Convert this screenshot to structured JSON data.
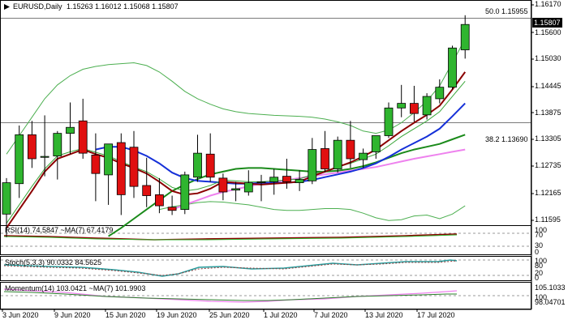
{
  "header": {
    "symbol": "EURUSD,Daily",
    "ohlc": "1.15263 1.16012 1.15068 1.15807"
  },
  "current_price": "1.15807",
  "fib_levels": [
    {
      "label": "50.0 1.15955",
      "price": 1.15955
    },
    {
      "label": "38.2 1.13690",
      "price": 1.1369
    }
  ],
  "price_axis": [
    "1.16170",
    "1.15600",
    "1.15030",
    "1.14445",
    "1.13875",
    "1.13305",
    "1.12735",
    "1.12165",
    "1.11595"
  ],
  "date_axis": [
    "3 Jun 2020",
    "9 Jun 2020",
    "15 Jun 2020",
    "19 Jun 2020",
    "25 Jun 2020",
    "1 Jul 2020",
    "7 Jul 2020",
    "13 Jul 2020",
    "17 Jul 2020"
  ],
  "indicators": {
    "rsi": {
      "label": "RSI(14) 74.5847  ~MA(7) 67.4179",
      "axis": [
        "100",
        "70",
        "30",
        "0"
      ]
    },
    "stoch": {
      "label": "Stoch(5,3,3) 90.0332 84.5625",
      "axis": [
        "100",
        "80",
        "20",
        "0"
      ]
    },
    "momentum": {
      "label": "Momentum(14) 103.0421  ~MA(7) 101.9903",
      "axis": [
        "105.1033",
        "100",
        "98.04701"
      ]
    }
  },
  "colors": {
    "bull": "#2fb52f",
    "bear": "#e01010",
    "ma_dark_red": "#8b0000",
    "ma_green": "#1a8a1a",
    "ma_blue": "#1530d8",
    "ma_pink": "#ee82ee",
    "bands": "#4caf50"
  },
  "chart_data": {
    "type": "candlestick",
    "candles": [
      {
        "date": "2 Jun 2020",
        "open": 1.117,
        "high": 1.1248,
        "low": 1.112,
        "close": 1.1238
      },
      {
        "date": "3 Jun 2020",
        "open": 1.1236,
        "high": 1.1362,
        "low": 1.1205,
        "close": 1.1342
      },
      {
        "date": "4 Jun 2020",
        "open": 1.1342,
        "high": 1.1372,
        "low": 1.127,
        "close": 1.129
      },
      {
        "date": "5 Jun 2020",
        "open": 1.1293,
        "high": 1.1384,
        "low": 1.1252,
        "close": 1.1295
      },
      {
        "date": "8 Jun 2020",
        "open": 1.1296,
        "high": 1.135,
        "low": 1.1245,
        "close": 1.1345
      },
      {
        "date": "9 Jun 2020",
        "open": 1.1345,
        "high": 1.1412,
        "low": 1.13,
        "close": 1.1358
      },
      {
        "date": "10 Jun 2020",
        "open": 1.1372,
        "high": 1.142,
        "low": 1.129,
        "close": 1.1302
      },
      {
        "date": "11 Jun 2020",
        "open": 1.1298,
        "high": 1.1345,
        "low": 1.1198,
        "close": 1.1258
      },
      {
        "date": "12 Jun 2020",
        "open": 1.1255,
        "high": 1.132,
        "low": 1.119,
        "close": 1.1322
      },
      {
        "date": "15 Jun 2020",
        "open": 1.1325,
        "high": 1.1345,
        "low": 1.1168,
        "close": 1.1212
      },
      {
        "date": "16 Jun 2020",
        "open": 1.1315,
        "high": 1.135,
        "low": 1.1205,
        "close": 1.123
      },
      {
        "date": "17 Jun 2020",
        "open": 1.1232,
        "high": 1.1292,
        "low": 1.1185,
        "close": 1.121
      },
      {
        "date": "18 Jun 2020",
        "open": 1.1212,
        "high": 1.1248,
        "low": 1.1172,
        "close": 1.1188
      },
      {
        "date": "19 Jun 2020",
        "open": 1.1185,
        "high": 1.121,
        "low": 1.1168,
        "close": 1.1178
      },
      {
        "date": "22 Jun 2020",
        "open": 1.118,
        "high": 1.1262,
        "low": 1.117,
        "close": 1.1255
      },
      {
        "date": "23 Jun 2020",
        "open": 1.125,
        "high": 1.1342,
        "low": 1.124,
        "close": 1.1302
      },
      {
        "date": "24 Jun 2020",
        "open": 1.13,
        "high": 1.1345,
        "low": 1.124,
        "close": 1.125
      },
      {
        "date": "25 Jun 2020",
        "open": 1.1248,
        "high": 1.1258,
        "low": 1.12,
        "close": 1.1218
      },
      {
        "date": "26 Jun 2020",
        "open": 1.1222,
        "high": 1.124,
        "low": 1.1198,
        "close": 1.1225
      },
      {
        "date": "29 Jun 2020",
        "open": 1.1218,
        "high": 1.1265,
        "low": 1.121,
        "close": 1.1238
      },
      {
        "date": "30 Jun 2020",
        "open": 1.1238,
        "high": 1.1255,
        "low": 1.1198,
        "close": 1.124
      },
      {
        "date": "1 Jul 2020",
        "open": 1.124,
        "high": 1.1268,
        "low": 1.1212,
        "close": 1.125
      },
      {
        "date": "2 Jul 2020",
        "open": 1.1252,
        "high": 1.129,
        "low": 1.1225,
        "close": 1.124
      },
      {
        "date": "3 Jul 2020",
        "open": 1.1238,
        "high": 1.1265,
        "low": 1.122,
        "close": 1.1245
      },
      {
        "date": "6 Jul 2020",
        "open": 1.1242,
        "high": 1.1335,
        "low": 1.1235,
        "close": 1.131
      },
      {
        "date": "7 Jul 2020",
        "open": 1.1312,
        "high": 1.135,
        "low": 1.126,
        "close": 1.1268
      },
      {
        "date": "8 Jul 2020",
        "open": 1.1268,
        "high": 1.1338,
        "low": 1.126,
        "close": 1.133
      },
      {
        "date": "9 Jul 2020",
        "open": 1.133,
        "high": 1.1372,
        "low": 1.127,
        "close": 1.129
      },
      {
        "date": "10 Jul 2020",
        "open": 1.1288,
        "high": 1.1312,
        "low": 1.127,
        "close": 1.1302
      },
      {
        "date": "13 Jul 2020",
        "open": 1.1305,
        "high": 1.134,
        "low": 1.129,
        "close": 1.134
      },
      {
        "date": "14 Jul 2020",
        "open": 1.134,
        "high": 1.1412,
        "low": 1.1335,
        "close": 1.14
      },
      {
        "date": "15 Jul 2020",
        "open": 1.14,
        "high": 1.145,
        "low": 1.138,
        "close": 1.141
      },
      {
        "date": "16 Jul 2020",
        "open": 1.141,
        "high": 1.1448,
        "low": 1.137,
        "close": 1.1388
      },
      {
        "date": "17 Jul 2020",
        "open": 1.1385,
        "high": 1.1432,
        "low": 1.1375,
        "close": 1.1425
      },
      {
        "date": "20 Jul 2020",
        "open": 1.142,
        "high": 1.1462,
        "low": 1.141,
        "close": 1.1445
      },
      {
        "date": "21 Jul 2020",
        "open": 1.1445,
        "high": 1.1535,
        "low": 1.144,
        "close": 1.153
      },
      {
        "date": "22 Jul 2020",
        "open": 1.1526,
        "high": 1.1601,
        "low": 1.1507,
        "close": 1.1581
      }
    ],
    "overlays": {
      "ma_dark_red": [
        1.114,
        1.118,
        1.122,
        1.1262,
        1.129,
        1.13,
        1.131,
        1.13,
        1.1292,
        1.128,
        1.127,
        1.1258,
        1.124,
        1.122,
        1.1212,
        1.1215,
        1.1225,
        1.124,
        1.1238,
        1.1236,
        1.1234,
        1.1236,
        1.1238,
        1.124,
        1.1252,
        1.1262,
        1.1272,
        1.1282,
        1.1295,
        1.131,
        1.133,
        1.135,
        1.1368,
        1.1385,
        1.1405,
        1.144,
        1.1478
      ],
      "ma_green_thin": [
        1.115,
        1.119,
        1.123,
        1.1268,
        1.1296,
        1.1305,
        1.1312,
        1.1304,
        1.1296,
        1.1284,
        1.1272,
        1.1262,
        1.1246,
        1.1228,
        1.122,
        1.1224,
        1.1232,
        1.1244,
        1.1242,
        1.124,
        1.124,
        1.1242,
        1.1244,
        1.1246,
        1.1256,
        1.1264,
        1.1272,
        1.128,
        1.129,
        1.13,
        1.1318,
        1.1338,
        1.1355,
        1.1372,
        1.1392,
        1.1425,
        1.1458
      ],
      "ma_blue": [
        null,
        null,
        null,
        null,
        null,
        null,
        null,
        1.131,
        1.1316,
        1.1316,
        1.1308,
        1.1296,
        1.128,
        1.126,
        1.1248,
        1.1242,
        1.124,
        1.1238,
        1.1236,
        1.1236,
        1.1238,
        1.1238,
        1.1238,
        1.124,
        1.1244,
        1.125,
        1.1256,
        1.1262,
        1.127,
        1.128,
        1.1294,
        1.131,
        1.1324,
        1.1338,
        1.1355,
        1.1382,
        1.141
      ],
      "ma_green_thick": [
        null,
        null,
        null,
        null,
        null,
        null,
        null,
        null,
        1.1122,
        1.114,
        1.116,
        1.118,
        1.12,
        1.122,
        1.1234,
        1.1246,
        1.1256,
        1.1262,
        1.1268,
        1.127,
        1.127,
        1.1268,
        1.1266,
        1.1264,
        1.1262,
        1.1262,
        1.1264,
        1.1268,
        1.1274,
        1.1282,
        1.1292,
        1.1302,
        1.131,
        1.1316,
        1.1322,
        1.1332,
        1.1342
      ],
      "ma_pink": [
        null,
        null,
        null,
        null,
        null,
        null,
        null,
        null,
        null,
        null,
        null,
        null,
        null,
        1.118,
        1.119,
        1.12,
        1.121,
        1.1218,
        1.1224,
        1.123,
        1.1236,
        1.124,
        1.1244,
        1.1248,
        1.1252,
        1.1256,
        1.126,
        1.1264,
        1.1268,
        1.1272,
        1.1278,
        1.1284,
        1.129,
        1.1295,
        1.13,
        1.1305,
        1.131
      ],
      "bands_upper": [
        1.13,
        1.134,
        1.138,
        1.142,
        1.145,
        1.147,
        1.1484,
        1.149,
        1.1494,
        1.1496,
        1.1498,
        1.1492,
        1.1478,
        1.1458,
        1.1436,
        1.142,
        1.1408,
        1.1398,
        1.1392,
        1.1388,
        1.1386,
        1.1384,
        1.1383,
        1.1382,
        1.138,
        1.1376,
        1.137,
        1.1362,
        1.135,
        1.1345,
        1.1352,
        1.1368,
        1.139,
        1.1415,
        1.1448,
        1.1498,
        1.155
      ],
      "bands_lower": [
        null,
        null,
        null,
        null,
        null,
        null,
        null,
        null,
        null,
        null,
        null,
        null,
        1.118,
        1.1186,
        1.119,
        1.1195,
        1.1197,
        1.1196,
        1.1193,
        1.119,
        1.1185,
        1.118,
        1.1178,
        1.1178,
        1.118,
        1.1182,
        1.1182,
        1.118,
        1.1172,
        1.1162,
        1.1156,
        1.1158,
        1.1166,
        1.1168,
        1.116,
        1.117,
        1.1188
      ]
    },
    "ylim": [
      1.1153,
      1.1627
    ]
  }
}
